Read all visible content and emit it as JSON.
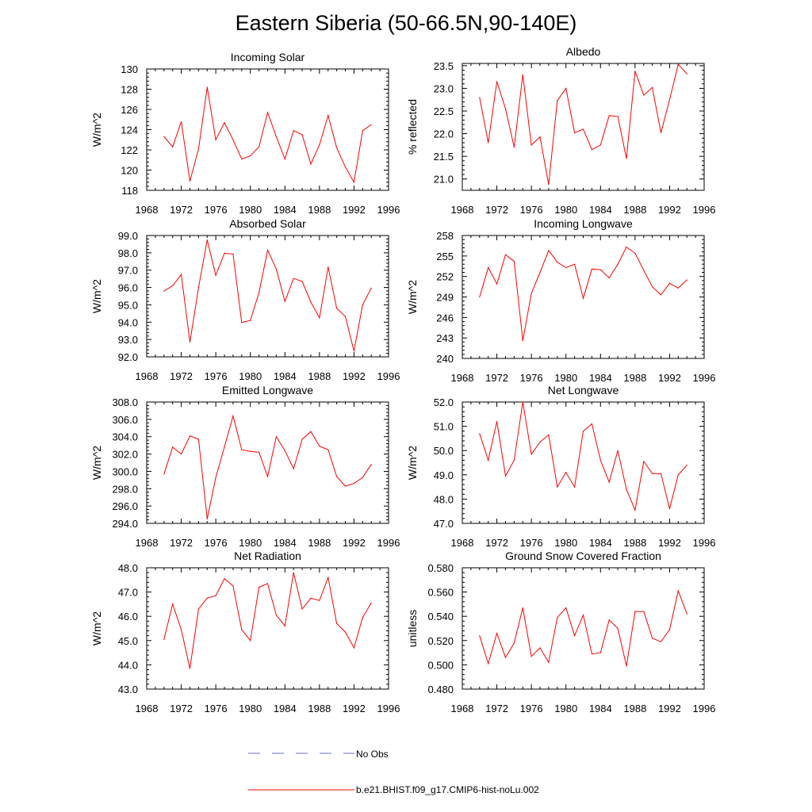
{
  "title": "Eastern Siberia (50-66.5N,90-140E)",
  "colors": {
    "model": "#ff0000",
    "obs": "#6b73c0",
    "axis": "#000000"
  },
  "legend": [
    {
      "label": "No Obs",
      "style": "dashed",
      "color": "#6b73c0"
    },
    {
      "label": "b.e21.BHIST.f09_g17.CMIP6-hist-noLu.002",
      "style": "solid",
      "color": "#ff0000"
    }
  ],
  "chart_data": [
    {
      "type": "line",
      "title": "Incoming Solar",
      "ylabel": "W/m^2",
      "xlim": [
        1968,
        1996
      ],
      "ylim": [
        118,
        130
      ],
      "xticks": [
        "1968",
        "1972",
        "1976",
        "1980",
        "1984",
        "1988",
        "1992",
        "1996"
      ],
      "yticks": [
        "118",
        "120",
        "122",
        "124",
        "126",
        "128",
        "130"
      ],
      "x": [
        1970,
        1971,
        1972,
        1973,
        1974,
        1975,
        1976,
        1977,
        1978,
        1979,
        1980,
        1981,
        1982,
        1983,
        1984,
        1985,
        1986,
        1987,
        1988,
        1989,
        1990,
        1991,
        1992,
        1993,
        1994
      ],
      "series": [
        {
          "name": "b.e21.BHIST.f09_g17.CMIP6-hist-noLu.002",
          "values": [
            123.3,
            122.3,
            124.8,
            118.9,
            122.1,
            128.2,
            123.0,
            124.7,
            123.0,
            121.1,
            121.4,
            122.3,
            125.7,
            123.3,
            121.1,
            123.9,
            123.5,
            120.6,
            122.5,
            125.4,
            122.2,
            120.3,
            118.8,
            123.9,
            124.5
          ]
        }
      ]
    },
    {
      "type": "line",
      "title": "Albedo",
      "ylabel": "% reflected",
      "xlim": [
        1968,
        1996
      ],
      "ylim": [
        20.75,
        23.55
      ],
      "xticks": [
        "1968",
        "1972",
        "1976",
        "1980",
        "1984",
        "1988",
        "1992",
        "1996"
      ],
      "yticks": [
        "21.0",
        "21.5",
        "22.0",
        "22.5",
        "23.0",
        "23.5"
      ],
      "x": [
        1970,
        1971,
        1972,
        1973,
        1974,
        1975,
        1976,
        1977,
        1978,
        1979,
        1980,
        1981,
        1982,
        1983,
        1984,
        1985,
        1986,
        1987,
        1988,
        1989,
        1990,
        1991,
        1992,
        1993,
        1994
      ],
      "series": [
        {
          "name": "b.e21.BHIST.f09_g17.CMIP6-hist-noLu.002",
          "values": [
            22.8,
            21.8,
            23.15,
            22.55,
            21.7,
            23.3,
            21.75,
            21.93,
            20.88,
            22.73,
            23.0,
            22.02,
            22.1,
            21.65,
            21.75,
            22.4,
            22.38,
            21.45,
            23.38,
            22.85,
            23.02,
            22.02,
            22.75,
            23.53,
            23.32
          ]
        }
      ]
    },
    {
      "type": "line",
      "title": "Absorbed Solar",
      "ylabel": "W/m^2",
      "xlim": [
        1968,
        1996
      ],
      "ylim": [
        92.0,
        99.0
      ],
      "xticks": [
        "1968",
        "1972",
        "1976",
        "1980",
        "1984",
        "1988",
        "1992",
        "1996"
      ],
      "yticks": [
        "92.0",
        "93.0",
        "94.0",
        "95.0",
        "96.0",
        "97.0",
        "98.0",
        "99.0"
      ],
      "x": [
        1970,
        1971,
        1972,
        1973,
        1974,
        1975,
        1976,
        1977,
        1978,
        1979,
        1980,
        1981,
        1982,
        1983,
        1984,
        1985,
        1986,
        1987,
        1988,
        1989,
        1990,
        1991,
        1992,
        1993,
        1994
      ],
      "series": [
        {
          "name": "b.e21.BHIST.f09_g17.CMIP6-hist-noLu.002",
          "values": [
            95.8,
            96.1,
            96.75,
            92.85,
            96.0,
            98.75,
            96.7,
            97.98,
            97.93,
            93.98,
            94.1,
            95.7,
            98.15,
            97.07,
            95.2,
            96.52,
            96.35,
            95.15,
            94.25,
            97.18,
            94.8,
            94.33,
            92.33,
            95.0,
            95.97
          ]
        }
      ]
    },
    {
      "type": "line",
      "title": "Incoming Longwave",
      "ylabel": "W/m^2",
      "xlim": [
        1968,
        1996
      ],
      "ylim": [
        240,
        258
      ],
      "xticks": [
        "1968",
        "1972",
        "1976",
        "1980",
        "1984",
        "1988",
        "1992",
        "1996"
      ],
      "yticks": [
        "240",
        "243",
        "246",
        "249",
        "252",
        "255",
        "258"
      ],
      "x": [
        1970,
        1971,
        1972,
        1973,
        1974,
        1975,
        1976,
        1977,
        1978,
        1979,
        1980,
        1981,
        1982,
        1983,
        1984,
        1985,
        1986,
        1987,
        1988,
        1989,
        1990,
        1991,
        1992,
        1993,
        1994
      ],
      "series": [
        {
          "name": "b.e21.BHIST.f09_g17.CMIP6-hist-noLu.002",
          "values": [
            249.0,
            253.3,
            250.9,
            255.2,
            254.2,
            242.6,
            249.5,
            252.6,
            255.8,
            254.1,
            253.3,
            253.8,
            248.8,
            253.1,
            253.0,
            251.8,
            253.8,
            256.3,
            255.4,
            252.9,
            250.5,
            249.3,
            251.0,
            250.3,
            251.5
          ]
        }
      ]
    },
    {
      "type": "line",
      "title": "Emitted Longwave",
      "ylabel": "W/m^2",
      "xlim": [
        1968,
        1996
      ],
      "ylim": [
        294.0,
        308.0
      ],
      "xticks": [
        "1968",
        "1972",
        "1976",
        "1980",
        "1984",
        "1988",
        "1992",
        "1996"
      ],
      "yticks": [
        "294.0",
        "296.0",
        "298.0",
        "300.0",
        "302.0",
        "304.0",
        "306.0",
        "308.0"
      ],
      "x": [
        1970,
        1971,
        1972,
        1973,
        1974,
        1975,
        1976,
        1977,
        1978,
        1979,
        1980,
        1981,
        1982,
        1983,
        1984,
        1985,
        1986,
        1987,
        1988,
        1989,
        1990,
        1991,
        1992,
        1993,
        1994
      ],
      "series": [
        {
          "name": "b.e21.BHIST.f09_g17.CMIP6-hist-noLu.002",
          "values": [
            299.7,
            302.8,
            302.0,
            304.1,
            303.7,
            294.5,
            299.3,
            302.8,
            306.4,
            302.5,
            302.3,
            302.2,
            299.4,
            304.0,
            302.4,
            300.3,
            303.7,
            304.6,
            302.9,
            302.5,
            299.4,
            298.3,
            298.6,
            299.3,
            300.8
          ]
        }
      ]
    },
    {
      "type": "line",
      "title": "Net Longwave",
      "ylabel": "W/m^2",
      "xlim": [
        1968,
        1996
      ],
      "ylim": [
        47.0,
        52.0
      ],
      "xticks": [
        "1968",
        "1972",
        "1976",
        "1980",
        "1984",
        "1988",
        "1992",
        "1996"
      ],
      "yticks": [
        "47.0",
        "48.0",
        "49.0",
        "50.0",
        "51.0",
        "52.0"
      ],
      "x": [
        1970,
        1971,
        1972,
        1973,
        1974,
        1975,
        1976,
        1977,
        1978,
        1979,
        1980,
        1981,
        1982,
        1983,
        1984,
        1985,
        1986,
        1987,
        1988,
        1989,
        1990,
        1991,
        1992,
        1993,
        1994
      ],
      "series": [
        {
          "name": "b.e21.BHIST.f09_g17.CMIP6-hist-noLu.002",
          "values": [
            50.7,
            49.6,
            51.2,
            48.95,
            49.6,
            52.0,
            49.85,
            50.35,
            50.65,
            48.5,
            49.1,
            48.5,
            50.8,
            51.1,
            49.6,
            48.7,
            50.0,
            48.4,
            47.55,
            49.55,
            49.05,
            49.05,
            47.6,
            49.0,
            49.4
          ]
        }
      ]
    },
    {
      "type": "line",
      "title": "Net Radiation",
      "ylabel": "W/m^2",
      "xlim": [
        1968,
        1996
      ],
      "ylim": [
        43.0,
        48.0
      ],
      "xticks": [
        "1968",
        "1972",
        "1976",
        "1980",
        "1984",
        "1988",
        "1992",
        "1996"
      ],
      "yticks": [
        "43.0",
        "44.0",
        "45.0",
        "46.0",
        "47.0",
        "48.0"
      ],
      "x": [
        1970,
        1971,
        1972,
        1973,
        1974,
        1975,
        1976,
        1977,
        1978,
        1979,
        1980,
        1981,
        1982,
        1983,
        1984,
        1985,
        1986,
        1987,
        1988,
        1989,
        1990,
        1991,
        1992,
        1993,
        1994
      ],
      "series": [
        {
          "name": "b.e21.BHIST.f09_g17.CMIP6-hist-noLu.002",
          "values": [
            45.05,
            46.5,
            45.45,
            43.85,
            46.3,
            46.75,
            46.85,
            47.55,
            47.25,
            45.45,
            45.0,
            47.2,
            47.35,
            46.05,
            45.6,
            47.8,
            46.3,
            46.75,
            46.65,
            47.6,
            45.7,
            45.35,
            44.7,
            45.95,
            46.55
          ]
        }
      ]
    },
    {
      "type": "line",
      "title": "Ground Snow Covered Fraction",
      "ylabel": "unitless",
      "xlim": [
        1968,
        1996
      ],
      "ylim": [
        0.48,
        0.58
      ],
      "xticks": [
        "1968",
        "1972",
        "1976",
        "1980",
        "1984",
        "1988",
        "1992",
        "1996"
      ],
      "yticks": [
        "0.480",
        "0.500",
        "0.520",
        "0.540",
        "0.560",
        "0.580"
      ],
      "x": [
        1970,
        1971,
        1972,
        1973,
        1974,
        1975,
        1976,
        1977,
        1978,
        1979,
        1980,
        1981,
        1982,
        1983,
        1984,
        1985,
        1986,
        1987,
        1988,
        1989,
        1990,
        1991,
        1992,
        1993,
        1994
      ],
      "series": [
        {
          "name": "b.e21.BHIST.f09_g17.CMIP6-hist-noLu.002",
          "values": [
            0.524,
            0.501,
            0.526,
            0.506,
            0.518,
            0.547,
            0.507,
            0.514,
            0.502,
            0.539,
            0.547,
            0.524,
            0.541,
            0.509,
            0.51,
            0.537,
            0.53,
            0.499,
            0.544,
            0.544,
            0.522,
            0.519,
            0.529,
            0.561,
            0.542
          ]
        }
      ]
    }
  ]
}
